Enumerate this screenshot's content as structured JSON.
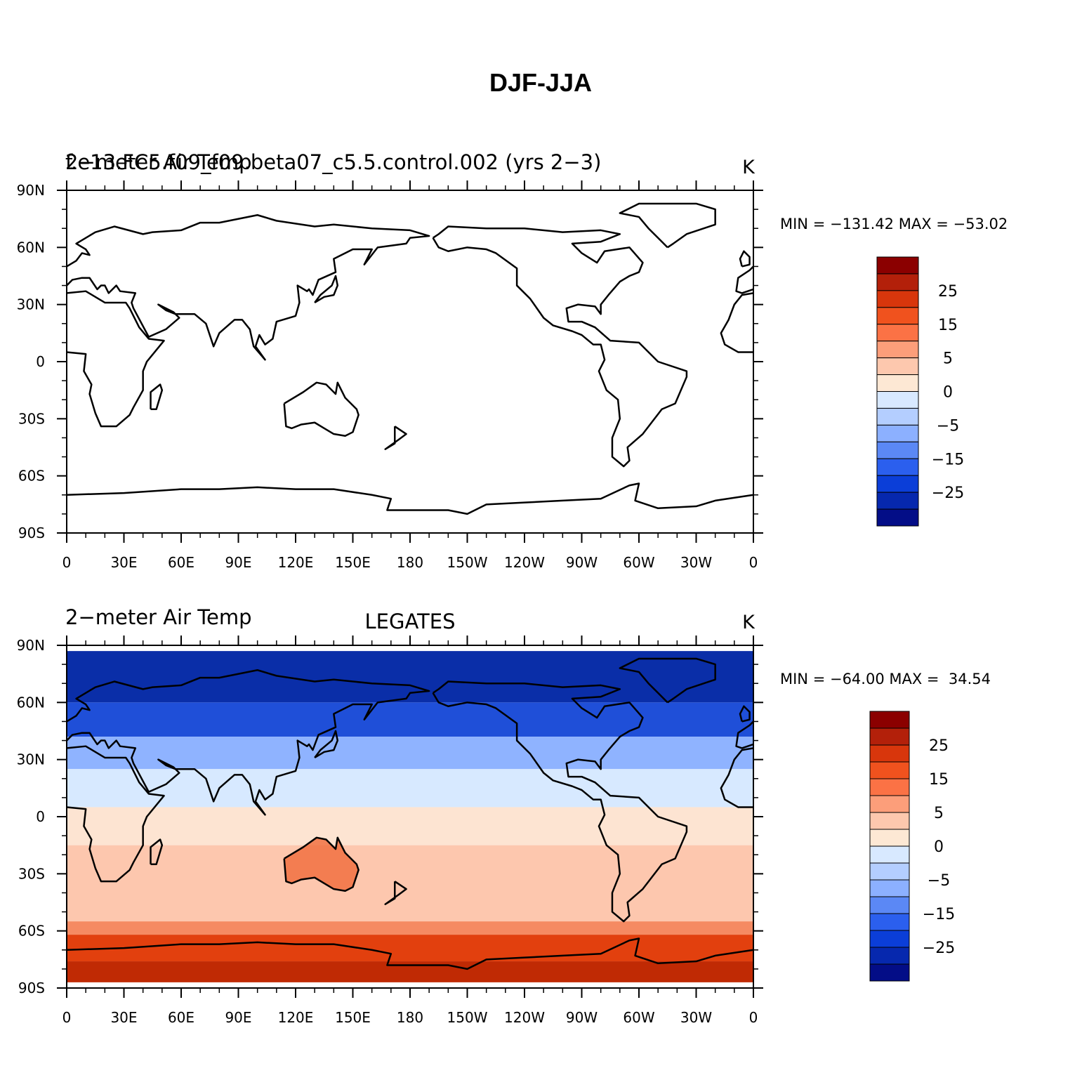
{
  "title": "DJF-JJA",
  "panels": [
    {
      "left_titles": [
        "2−meter Air Temp",
        "f.e13.FC5.f09_f09.beta07_c5.5.control.002 (yrs 2−3)"
      ],
      "center_title": null,
      "units": "K",
      "min_max": "MIN = −131.42 MAX = −53.02",
      "lat_labels": [
        "90N",
        "60N",
        "30N",
        "0",
        "30S",
        "60S",
        "90S"
      ],
      "lon_labels": [
        "0",
        "30E",
        "60E",
        "90E",
        "120E",
        "150E",
        "180",
        "150W",
        "120W",
        "90W",
        "60W",
        "30W",
        "0"
      ],
      "colorbar_labels": [
        "25",
        "15",
        "5",
        "0",
        "−5",
        "−15",
        "−25"
      ]
    },
    {
      "left_titles": [
        "2−meter Air Temp"
      ],
      "center_title": "LEGATES",
      "units": "K",
      "min_max": "MIN = −64.00 MAX =  34.54",
      "lat_labels": [
        "90N",
        "60N",
        "30N",
        "0",
        "30S",
        "60S",
        "90S"
      ],
      "lon_labels": [
        "0",
        "30E",
        "60E",
        "90E",
        "120E",
        "150E",
        "180",
        "150W",
        "120W",
        "90W",
        "60W",
        "30W",
        "0"
      ],
      "colorbar_labels": [
        "25",
        "15",
        "5",
        "0",
        "−5",
        "−15",
        "−25"
      ]
    }
  ]
}
